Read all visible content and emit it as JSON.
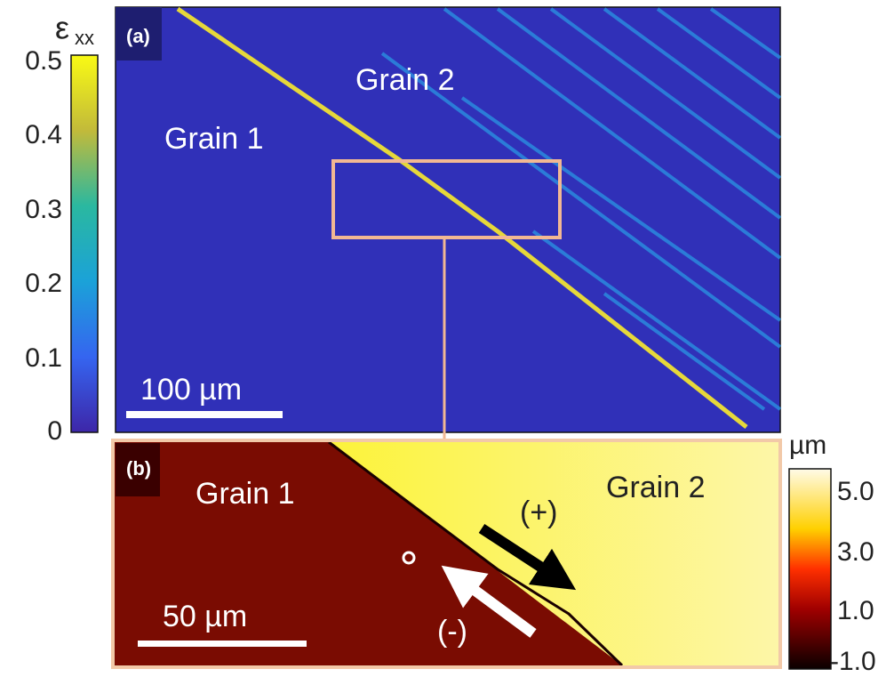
{
  "colorbar_a": {
    "symbol": "ε",
    "subscript": "xx",
    "ticks": [
      "0.5",
      "0.4",
      "0.3",
      "0.2",
      "0.1",
      "0"
    ]
  },
  "panel_a": {
    "tag": "(a)",
    "grain_2": "Grain 2",
    "grain_1": "Grain 1",
    "scale_bar": "100 µm"
  },
  "panel_b": {
    "tag": "(b)",
    "grain_1": "Grain 1",
    "grain_2": "Grain 2",
    "scale_bar": "50 µm",
    "plus": "(+)",
    "minus": "(-)"
  },
  "colorbar_b": {
    "unit": "µm",
    "ticks": [
      "5.0",
      "3.0",
      "1.0",
      "-1.0"
    ]
  }
}
